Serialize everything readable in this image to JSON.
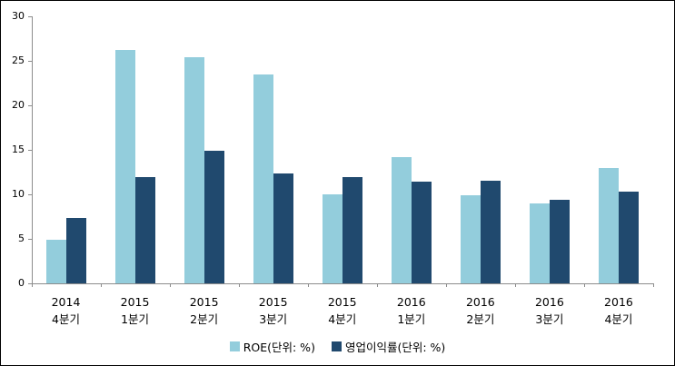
{
  "chart_data": {
    "type": "bar",
    "title": "",
    "categories": [
      "2014 4분기",
      "2015 1분기",
      "2015 2분기",
      "2015 3분기",
      "2015 4분기",
      "2016 1분기",
      "2016 2분기",
      "2016 3분기",
      "2016 4분기"
    ],
    "category_lines": [
      [
        "2014",
        "4분기"
      ],
      [
        "2015",
        "1분기"
      ],
      [
        "2015",
        "2분기"
      ],
      [
        "2015",
        "3분기"
      ],
      [
        "2015",
        "4분기"
      ],
      [
        "2016",
        "1분기"
      ],
      [
        "2016",
        "2분기"
      ],
      [
        "2016",
        "3분기"
      ],
      [
        "2016",
        "4분기"
      ]
    ],
    "series": [
      {
        "name": "ROE(단위: %)",
        "color": "#93CDDC",
        "values": [
          4.9,
          26.2,
          25.4,
          23.5,
          10.0,
          14.2,
          9.9,
          9.0,
          13.0
        ]
      },
      {
        "name": "영업이익률(단위: %)",
        "color": "#20496E",
        "values": [
          7.3,
          11.9,
          14.9,
          12.3,
          11.9,
          11.4,
          11.5,
          9.4,
          10.3
        ]
      }
    ],
    "ylim": [
      0,
      30
    ],
    "ytick_step": 5,
    "ytick_labels": [
      "0",
      "5",
      "10",
      "15",
      "20",
      "25",
      "30"
    ],
    "grid": false,
    "legend_position": "bottom",
    "axis_color": "#8C8C8C",
    "text_color": "#000000",
    "background_color": "#FFFFFF"
  }
}
